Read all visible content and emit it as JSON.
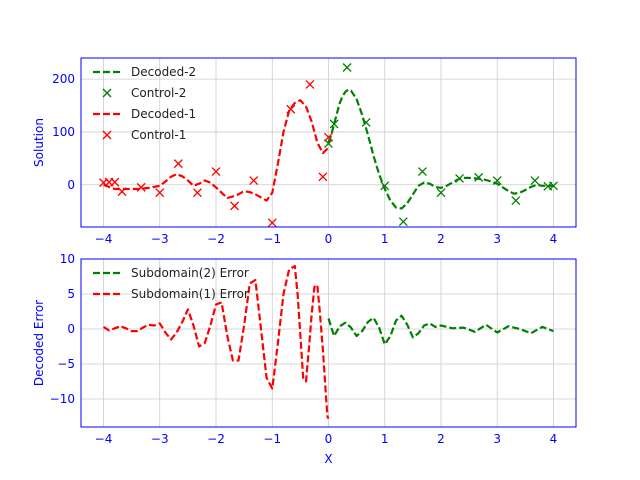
{
  "chart_data": [
    {
      "type": "line",
      "panel": "top",
      "title": "",
      "xlabel": "",
      "ylabel": "Solution",
      "xlim": [
        -4.4,
        4.4
      ],
      "ylim": [
        -80,
        240
      ],
      "xticks": [
        -4,
        -3,
        -2,
        -1,
        0,
        1,
        2,
        3,
        4
      ],
      "xtick_labels": [
        "−4",
        "−3",
        "−2",
        "−1",
        "0",
        "1",
        "2",
        "3",
        "4"
      ],
      "yticks": [
        0,
        100,
        200
      ],
      "ytick_labels": [
        "0",
        "100",
        "200"
      ],
      "grid": true,
      "legend_location": "top-left",
      "series": [
        {
          "name": "Decoded-2",
          "kind": "line",
          "style": "dashed",
          "color": "#008000",
          "x": [
            0.0,
            0.05,
            0.1,
            0.15,
            0.2,
            0.25,
            0.3,
            0.35,
            0.4,
            0.5,
            0.6,
            0.7,
            0.8,
            0.9,
            1.0,
            1.1,
            1.2,
            1.3,
            1.4,
            1.5,
            1.6,
            1.7,
            1.8,
            1.9,
            2.0,
            2.1,
            2.2,
            2.3,
            2.4,
            2.5,
            2.6,
            2.7,
            2.8,
            2.9,
            3.0,
            3.1,
            3.2,
            3.3,
            3.4,
            3.5,
            3.6,
            3.7,
            3.8,
            3.9,
            4.0
          ],
          "y": [
            80,
            95,
            115,
            135,
            155,
            168,
            176,
            180,
            178,
            162,
            132,
            95,
            55,
            20,
            -8,
            -30,
            -43,
            -45,
            -35,
            -18,
            -2,
            4,
            2,
            -4,
            -6,
            -2,
            4,
            10,
            13,
            13,
            12,
            11,
            9,
            6,
            2,
            -5,
            -12,
            -17,
            -15,
            -10,
            -4,
            0,
            -2,
            -2,
            -2
          ]
        },
        {
          "name": "Control-2",
          "kind": "scatter",
          "marker": "x",
          "color": "#008000",
          "x": [
            0.0,
            0.1,
            0.33,
            0.67,
            1.0,
            1.33,
            1.67,
            2.0,
            2.33,
            2.67,
            3.0,
            3.33,
            3.67,
            3.9,
            4.0
          ],
          "y": [
            78,
            115,
            222,
            118,
            -2,
            -70,
            25,
            -15,
            12,
            14,
            8,
            -30,
            8,
            -3,
            -2
          ]
        },
        {
          "name": "Decoded-1",
          "kind": "line",
          "style": "dashed",
          "color": "#ff0000",
          "x": [
            -4.0,
            -3.8,
            -3.6,
            -3.4,
            -3.2,
            -3.0,
            -2.9,
            -2.8,
            -2.7,
            -2.6,
            -2.5,
            -2.4,
            -2.3,
            -2.2,
            -2.1,
            -2.0,
            -1.9,
            -1.8,
            -1.7,
            -1.6,
            -1.5,
            -1.4,
            -1.3,
            -1.2,
            -1.1,
            -1.0,
            -0.9,
            -0.8,
            -0.7,
            -0.6,
            -0.5,
            -0.4,
            -0.3,
            -0.2,
            -0.1,
            0.0
          ],
          "y": [
            0,
            -8,
            -8,
            -8,
            -6,
            -2,
            6,
            15,
            20,
            16,
            8,
            -2,
            2,
            8,
            4,
            -5,
            -15,
            -25,
            -22,
            -18,
            -12,
            -14,
            -18,
            -24,
            -30,
            -15,
            40,
            100,
            140,
            155,
            160,
            148,
            120,
            80,
            60,
            70
          ]
        },
        {
          "name": "Control-1",
          "kind": "scatter",
          "marker": "x",
          "color": "#ff0000",
          "x": [
            -4.0,
            -3.9,
            -3.8,
            -3.67,
            -3.33,
            -3.0,
            -2.67,
            -2.33,
            -2.0,
            -1.67,
            -1.33,
            -1.0,
            -0.67,
            -0.33,
            -0.1,
            0.0
          ],
          "y": [
            4,
            5,
            5,
            -13,
            -5,
            -15,
            40,
            -15,
            25,
            -40,
            8,
            -72,
            143,
            190,
            15,
            90
          ]
        }
      ]
    },
    {
      "type": "line",
      "panel": "bottom",
      "title": "",
      "xlabel": "X",
      "ylabel": "Decoded Error",
      "xlim": [
        -4.4,
        4.4
      ],
      "ylim": [
        -14,
        10
      ],
      "xticks": [
        -4,
        -3,
        -2,
        -1,
        0,
        1,
        2,
        3,
        4
      ],
      "xtick_labels": [
        "−4",
        "−3",
        "−2",
        "−1",
        "0",
        "1",
        "2",
        "3",
        "4"
      ],
      "yticks": [
        -10,
        -5,
        0,
        5,
        10
      ],
      "ytick_labels": [
        "−10",
        "−5",
        "0",
        "5",
        "10"
      ],
      "grid": true,
      "legend_location": "top-left",
      "series": [
        {
          "name": "Subdomain(2) Error",
          "kind": "line",
          "style": "dashed",
          "color": "#008000",
          "x": [
            0.0,
            0.1,
            0.2,
            0.3,
            0.4,
            0.5,
            0.6,
            0.7,
            0.8,
            0.9,
            1.0,
            1.1,
            1.2,
            1.3,
            1.4,
            1.5,
            1.6,
            1.7,
            1.8,
            1.9,
            2.0,
            2.2,
            2.4,
            2.6,
            2.8,
            3.0,
            3.2,
            3.4,
            3.6,
            3.8,
            4.0
          ],
          "y": [
            1.5,
            -1.0,
            0.4,
            0.9,
            0.2,
            -1.0,
            -0.3,
            1.0,
            1.6,
            0.2,
            -2.2,
            -1.0,
            1.2,
            1.9,
            0.6,
            -1.2,
            -0.6,
            0.5,
            0.8,
            0.3,
            0.5,
            0.1,
            0.2,
            -0.4,
            0.6,
            -0.5,
            0.4,
            0.0,
            -0.6,
            0.3,
            -0.3
          ]
        },
        {
          "name": "Subdomain(1) Error",
          "kind": "line",
          "style": "dashed",
          "color": "#ff0000",
          "x": [
            -4.0,
            -3.9,
            -3.8,
            -3.7,
            -3.6,
            -3.5,
            -3.4,
            -3.3,
            -3.2,
            -3.1,
            -3.0,
            -2.9,
            -2.8,
            -2.7,
            -2.6,
            -2.5,
            -2.4,
            -2.3,
            -2.2,
            -2.1,
            -2.0,
            -1.9,
            -1.8,
            -1.7,
            -1.6,
            -1.5,
            -1.4,
            -1.3,
            -1.2,
            -1.1,
            -1.0,
            -0.9,
            -0.8,
            -0.7,
            -0.6,
            -0.55,
            -0.5,
            -0.45,
            -0.4,
            -0.35,
            -0.3,
            -0.25,
            -0.2,
            -0.15,
            -0.1,
            -0.05,
            -0.02,
            0.0
          ],
          "y": [
            0.3,
            -0.2,
            0.1,
            0.4,
            0.1,
            -0.3,
            -0.3,
            0.2,
            0.6,
            0.5,
            0.8,
            -0.5,
            -1.5,
            -0.5,
            1.0,
            2.8,
            0.5,
            -2.5,
            -2.0,
            0.5,
            3.5,
            3.8,
            -1.0,
            -4.5,
            -4.5,
            0.5,
            6.5,
            7.0,
            0.0,
            -7.0,
            -8.5,
            -2.0,
            5.0,
            8.5,
            9.0,
            5.0,
            -1.0,
            -7.0,
            -7.5,
            -3.0,
            2.0,
            6.0,
            6.3,
            2.0,
            -3.0,
            -9.0,
            -12.5,
            -12.8
          ]
        }
      ]
    }
  ]
}
